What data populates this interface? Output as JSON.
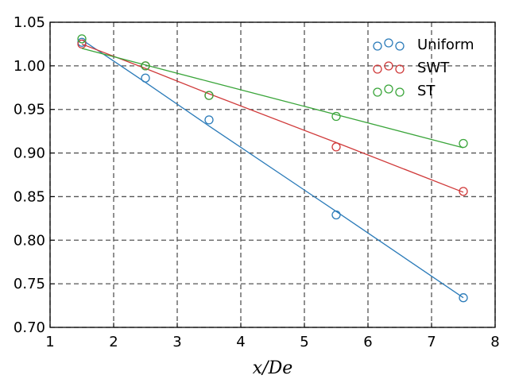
{
  "chart_data": {
    "type": "scatter",
    "xlabel": "x/De",
    "x": [
      1.5,
      2.5,
      3.5,
      5.5,
      7.5
    ],
    "series": [
      {
        "name": "Uniform",
        "color": "#2b7bb9",
        "values": [
          1.027,
          0.986,
          0.938,
          0.829,
          0.734
        ],
        "fit_values": [
          1.03,
          0.981,
          0.931,
          0.833,
          0.734
        ]
      },
      {
        "name": "SWT",
        "color": "#d03a3a",
        "values": [
          1.025,
          1.0,
          0.966,
          0.907,
          0.856
        ],
        "fit_values": [
          1.025,
          0.997,
          0.968,
          0.912,
          0.855
        ]
      },
      {
        "name": "ST",
        "color": "#3aa53a",
        "values": [
          1.031,
          1.0,
          0.966,
          0.942,
          0.911
        ],
        "fit_values": [
          1.02,
          1.001,
          0.982,
          0.944,
          0.906
        ]
      }
    ],
    "xlim": [
      1,
      8
    ],
    "xticks": [
      1,
      2,
      3,
      4,
      5,
      6,
      7,
      8
    ],
    "ylim": [
      0.7,
      1.05
    ],
    "yticks": [
      {
        "value": 0.7,
        "label": "0.70"
      },
      0.75,
      {
        "value": 0.8,
        "label": "0.80"
      },
      0.85,
      {
        "value": 0.9,
        "label": "0.90"
      },
      0.95,
      {
        "value": 1.0,
        "label": "1.00"
      },
      1.05
    ],
    "grid": true,
    "legend": "upper right"
  }
}
